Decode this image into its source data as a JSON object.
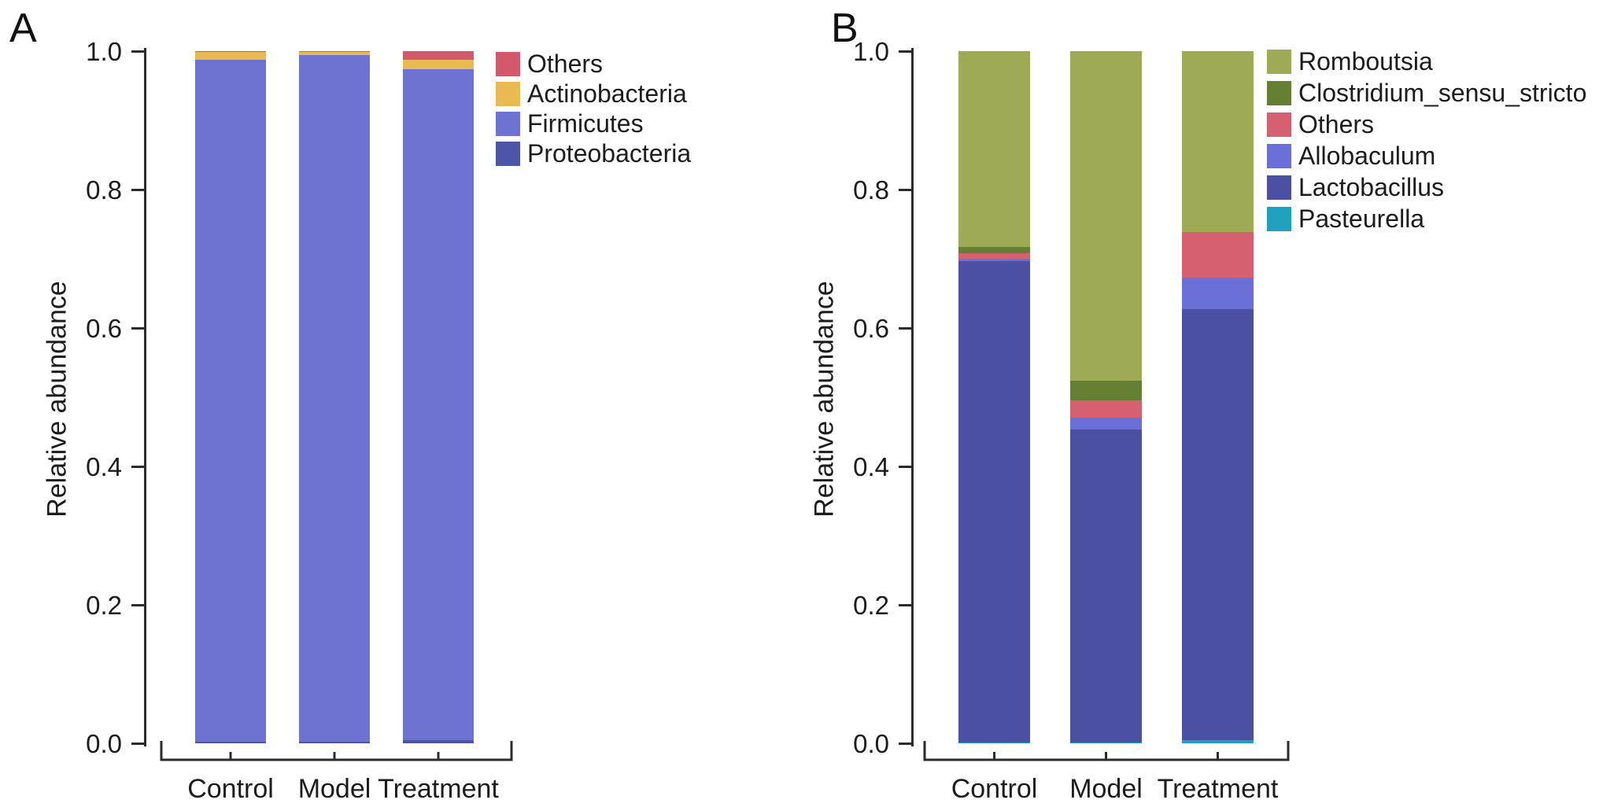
{
  "figure": {
    "background": "#ffffff",
    "text_color": "#1c1c1c",
    "axis_color": "#2b2b2b"
  },
  "chart_data": [
    {
      "type": "bar",
      "stacked": true,
      "panel_label": "A",
      "title": "",
      "xlabel": "",
      "ylabel": "Relative abundance",
      "ylim": [
        0.0,
        1.0
      ],
      "ytick_labels": [
        "0.0",
        "0.2",
        "0.4",
        "0.6",
        "0.8",
        "1.0"
      ],
      "ytick_values": [
        0.0,
        0.2,
        0.4,
        0.6,
        0.8,
        1.0
      ],
      "grid": false,
      "legend_position": "right-top",
      "legend_order": [
        "Others",
        "Actinobacteria",
        "Firmicutes",
        "Proteobacteria"
      ],
      "categories": [
        "Control",
        "Model",
        "Treatment"
      ],
      "series": [
        {
          "name": "Proteobacteria",
          "color": "#4c56a6",
          "values": [
            0.002,
            0.002,
            0.004
          ]
        },
        {
          "name": "Firmicutes",
          "color": "#6e73d2",
          "values": [
            0.986,
            0.992,
            0.97
          ]
        },
        {
          "name": "Actinobacteria",
          "color": "#e9ba52",
          "values": [
            0.011,
            0.005,
            0.013
          ]
        },
        {
          "name": "Others",
          "color": "#d2596b",
          "values": [
            0.001,
            0.001,
            0.013
          ]
        }
      ]
    },
    {
      "type": "bar",
      "stacked": true,
      "panel_label": "B",
      "title": "",
      "xlabel": "",
      "ylabel": "Relative abundance",
      "ylim": [
        0.0,
        1.0
      ],
      "ytick_labels": [
        "0.0",
        "0.2",
        "0.4",
        "0.6",
        "0.8",
        "1.0"
      ],
      "ytick_values": [
        0.0,
        0.2,
        0.4,
        0.6,
        0.8,
        1.0
      ],
      "grid": false,
      "legend_position": "right-top",
      "legend_order": [
        "Romboutsia",
        "Clostridium_sensu_stricto",
        "Others",
        "Allobaculum",
        "Lactobacillus",
        "Pasteurella"
      ],
      "categories": [
        "Control",
        "Model",
        "Treatment"
      ],
      "series": [
        {
          "name": "Pasteurella",
          "color": "#1da1bd",
          "values": [
            0.001,
            0.001,
            0.005
          ]
        },
        {
          "name": "Lactobacillus",
          "color": "#4b50a3",
          "values": [
            0.696,
            0.452,
            0.622
          ]
        },
        {
          "name": "Allobaculum",
          "color": "#6b70d8",
          "values": [
            0.003,
            0.018,
            0.046
          ]
        },
        {
          "name": "Others",
          "color": "#d5606f",
          "values": [
            0.008,
            0.025,
            0.066
          ]
        },
        {
          "name": "Clostridium_sensu_stricto",
          "color": "#647f31",
          "values": [
            0.009,
            0.028,
            0.0
          ]
        },
        {
          "name": "Romboutsia",
          "color": "#9faa55",
          "values": [
            0.283,
            0.476,
            0.261
          ]
        }
      ]
    }
  ]
}
